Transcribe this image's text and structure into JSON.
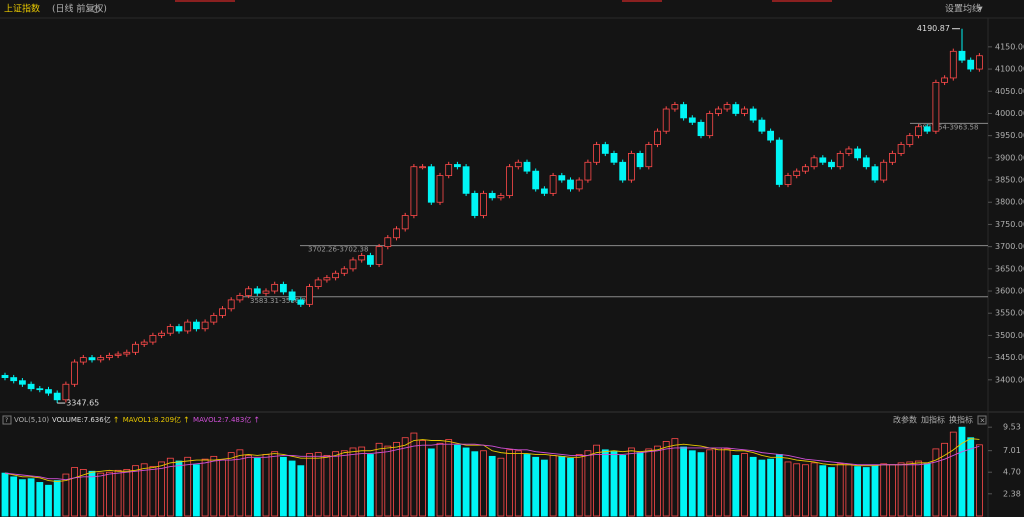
{
  "header": {
    "title": "上证指数",
    "subtitle": "(日线 前复权)",
    "ma_setting": "设置均线"
  },
  "chart_data": [
    {
      "type": "candlestick",
      "up_color": "#ff4a4a",
      "down_color": "#00f5f5",
      "ylim": [
        3332,
        4215
      ],
      "yticks": [
        {
          "value": 3400,
          "label": "3400.00"
        },
        {
          "value": 3450,
          "label": "3450.00"
        },
        {
          "value": 3500,
          "label": "3500.00"
        },
        {
          "value": 3550,
          "label": "3550.00"
        },
        {
          "value": 3600,
          "label": "3600.00"
        },
        {
          "value": 3650,
          "label": "3650.00"
        },
        {
          "value": 3700,
          "label": "3700.00"
        },
        {
          "value": 3750,
          "label": "3750.00"
        },
        {
          "value": 3800,
          "label": "3800.00"
        },
        {
          "value": 3850,
          "label": "3850.00"
        },
        {
          "value": 3900,
          "label": "3900.00"
        },
        {
          "value": 3950,
          "label": "3950.00"
        },
        {
          "value": 4000,
          "label": "4000.00"
        },
        {
          "value": 4050,
          "label": "4050.00"
        },
        {
          "value": 4100,
          "label": "4100.00"
        },
        {
          "value": 4150,
          "label": "4150.00"
        }
      ],
      "annotations": [
        {
          "value": 3702.26,
          "label": "3702.26-3702.38"
        },
        {
          "value": 3586.97,
          "label": "3583.31-3586.97"
        },
        {
          "value": 3977.54,
          "label": "3977.54-3963.58"
        }
      ],
      "open": [
        3410,
        3405,
        3398,
        3390,
        3380,
        3378,
        3370,
        3355,
        3390,
        3440,
        3450,
        3445,
        3450,
        3455,
        3458,
        3462,
        3480,
        3485,
        3500,
        3505,
        3520,
        3510,
        3530,
        3515,
        3530,
        3545,
        3560,
        3580,
        3590,
        3605,
        3595,
        3600,
        3615,
        3598,
        3580,
        3570,
        3610,
        3625,
        3630,
        3640,
        3650,
        3670,
        3680,
        3660,
        3700,
        3720,
        3740,
        3770,
        3880,
        3880,
        3800,
        3860,
        3885,
        3880,
        3820,
        3770,
        3820,
        3810,
        3815,
        3880,
        3890,
        3870,
        3830,
        3820,
        3860,
        3850,
        3830,
        3850,
        3890,
        3930,
        3910,
        3890,
        3850,
        3910,
        3880,
        3930,
        3960,
        4010,
        4020,
        3990,
        3980,
        3950,
        4000,
        4010,
        4020,
        4000,
        4010,
        3985,
        3960,
        3940,
        3840,
        3860,
        3870,
        3880,
        3900,
        3890,
        3880,
        3910,
        3920,
        3900,
        3880,
        3850,
        3890,
        3910,
        3930,
        3950,
        3970,
        3960,
        4070,
        4080,
        4140,
        4120,
        4100
      ],
      "high": [
        3416,
        3411,
        3404,
        3396,
        3386,
        3384,
        3376,
        3396,
        3446,
        3456,
        3456,
        3456,
        3461,
        3464,
        3468,
        3486,
        3491,
        3506,
        3511,
        3526,
        3526,
        3536,
        3536,
        3536,
        3551,
        3566,
        3586,
        3596,
        3611,
        3611,
        3606,
        3621,
        3621,
        3604,
        3586,
        3616,
        3631,
        3636,
        3646,
        3656,
        3676,
        3686,
        3686,
        3706,
        3726,
        3746,
        3776,
        3886,
        3886,
        3886,
        3866,
        3891,
        3891,
        3886,
        3826,
        3826,
        3826,
        3821,
        3886,
        3896,
        3896,
        3876,
        3836,
        3866,
        3866,
        3856,
        3856,
        3896,
        3936,
        3936,
        3916,
        3896,
        3916,
        3916,
        3936,
        3966,
        4016,
        4026,
        4026,
        3996,
        3986,
        4006,
        4016,
        4026,
        4026,
        4016,
        4016,
        3991,
        3966,
        3946,
        3866,
        3876,
        3886,
        3906,
        3906,
        3896,
        3916,
        3926,
        3926,
        3906,
        3886,
        3896,
        3916,
        3936,
        3956,
        3976,
        3976,
        4076,
        4086,
        4146,
        4190.87,
        4126,
        4136
      ],
      "low": [
        3399,
        3392,
        3384,
        3374,
        3372,
        3364,
        3347.65,
        3349,
        3384,
        3434,
        3439,
        3439,
        3444,
        3449,
        3452,
        3456,
        3474,
        3479,
        3494,
        3499,
        3504,
        3504,
        3509,
        3509,
        3524,
        3539,
        3554,
        3574,
        3584,
        3589,
        3589,
        3594,
        3592,
        3574,
        3564,
        3564,
        3604,
        3619,
        3624,
        3634,
        3644,
        3664,
        3654,
        3654,
        3694,
        3714,
        3734,
        3764,
        3874,
        3794,
        3794,
        3854,
        3874,
        3814,
        3764,
        3764,
        3804,
        3804,
        3809,
        3874,
        3864,
        3824,
        3814,
        3814,
        3844,
        3824,
        3824,
        3844,
        3884,
        3904,
        3884,
        3844,
        3844,
        3874,
        3874,
        3924,
        3954,
        4004,
        3984,
        3974,
        3944,
        3944,
        3994,
        4004,
        3994,
        3994,
        3979,
        3954,
        3934,
        3834,
        3834,
        3854,
        3864,
        3874,
        3884,
        3874,
        3874,
        3904,
        3894,
        3874,
        3844,
        3844,
        3884,
        3904,
        3924,
        3944,
        3954,
        3954,
        4064,
        4074,
        4114,
        4094,
        4094
      ],
      "close": [
        3405,
        3398,
        3390,
        3380,
        3378,
        3370,
        3355,
        3390,
        3440,
        3450,
        3445,
        3450,
        3455,
        3458,
        3462,
        3480,
        3485,
        3500,
        3505,
        3520,
        3510,
        3530,
        3515,
        3530,
        3545,
        3560,
        3580,
        3590,
        3605,
        3595,
        3600,
        3615,
        3598,
        3580,
        3570,
        3610,
        3625,
        3630,
        3640,
        3650,
        3670,
        3680,
        3660,
        3700,
        3720,
        3740,
        3770,
        3880,
        3880,
        3800,
        3860,
        3885,
        3880,
        3820,
        3770,
        3820,
        3810,
        3815,
        3880,
        3890,
        3870,
        3830,
        3820,
        3860,
        3850,
        3830,
        3850,
        3890,
        3930,
        3910,
        3890,
        3850,
        3910,
        3880,
        3930,
        3960,
        4010,
        4020,
        3990,
        3980,
        3950,
        4000,
        4010,
        4020,
        4000,
        4010,
        3985,
        3960,
        3940,
        3840,
        3860,
        3870,
        3880,
        3900,
        3890,
        3880,
        3910,
        3920,
        3900,
        3880,
        3850,
        3890,
        3910,
        3930,
        3950,
        3970,
        3960,
        4070,
        4080,
        4140,
        4120,
        4100,
        4130
      ]
    },
    {
      "type": "bar",
      "title": "VOL(5,10)",
      "buttons": [
        "改参数",
        "加指标",
        "换指标"
      ],
      "ylim": [
        0,
        10.3
      ],
      "yticks": [
        2.38,
        {
          "value": 4.7,
          "label": "4.70"
        },
        7.01,
        9.53
      ],
      "series": [
        {
          "name": "VOLUME:7.636亿",
          "color": "#ffffff",
          "values": [
            4.6,
            4.2,
            3.9,
            4.0,
            3.6,
            3.3,
            3.8,
            4.5,
            5.2,
            5.0,
            4.8,
            4.6,
            4.7,
            4.9,
            5.0,
            5.4,
            5.6,
            5.3,
            5.8,
            6.2,
            5.9,
            6.3,
            5.5,
            6.1,
            6.4,
            6.0,
            6.8,
            7.1,
            6.5,
            6.2,
            6.6,
            6.9,
            6.3,
            5.9,
            5.4,
            6.7,
            6.8,
            6.5,
            6.9,
            7.0,
            7.3,
            7.4,
            6.6,
            7.8,
            7.5,
            7.9,
            8.4,
            8.9,
            8.1,
            7.2,
            7.8,
            8.2,
            7.6,
            7.3,
            6.9,
            7.0,
            6.4,
            6.2,
            7.1,
            7.0,
            6.6,
            6.3,
            6.0,
            6.5,
            6.4,
            6.2,
            6.6,
            7.0,
            7.6,
            7.1,
            6.9,
            6.5,
            7.3,
            6.8,
            7.2,
            7.5,
            8.0,
            8.3,
            7.4,
            7.0,
            6.8,
            7.1,
            7.3,
            7.2,
            6.5,
            6.7,
            6.3,
            6.0,
            6.1,
            6.6,
            5.8,
            5.6,
            5.5,
            5.7,
            5.4,
            5.2,
            5.6,
            5.5,
            5.3,
            5.2,
            5.4,
            5.6,
            5.5,
            5.7,
            5.8,
            5.9,
            5.6,
            7.2,
            7.8,
            9.0,
            9.53,
            8.4,
            7.636
          ]
        },
        {
          "name": "MAVOL1:8.209亿",
          "color": "#e8c800",
          "values": [
            4.6,
            4.4,
            4.2,
            4.2,
            4.1,
            3.8,
            3.7,
            3.8,
            4.1,
            4.4,
            4.7,
            4.8,
            4.9,
            4.8,
            4.8,
            4.9,
            5.1,
            5.2,
            5.4,
            5.7,
            5.8,
            5.9,
            6.0,
            6.0,
            6.0,
            6.1,
            6.2,
            6.5,
            6.6,
            6.5,
            6.6,
            6.7,
            6.6,
            6.4,
            6.2,
            6.2,
            6.2,
            6.3,
            6.5,
            6.8,
            6.9,
            7.0,
            7.0,
            7.2,
            7.3,
            7.4,
            7.6,
            8.1,
            8.2,
            8.1,
            8.1,
            8.0,
            7.8,
            7.6,
            7.6,
            7.6,
            7.0,
            6.8,
            6.7,
            6.7,
            6.7,
            6.6,
            6.6,
            6.5,
            6.4,
            6.3,
            6.3,
            6.5,
            6.8,
            6.9,
            7.0,
            6.9,
            7.0,
            6.9,
            7.0,
            7.1,
            7.4,
            7.6,
            7.7,
            7.6,
            7.5,
            7.3,
            7.1,
            7.1,
            7.0,
            7.0,
            6.8,
            6.5,
            6.3,
            6.3,
            6.2,
            6.0,
            5.9,
            5.8,
            5.6,
            5.5,
            5.5,
            5.5,
            5.4,
            5.4,
            5.4,
            5.5,
            5.5,
            5.5,
            5.6,
            5.7,
            5.7,
            6.0,
            6.5,
            7.1,
            7.8,
            8.3,
            8.209
          ]
        },
        {
          "name": "MAVOL2:7.483亿",
          "color": "#d050d8",
          "values": [
            4.6,
            4.5,
            4.4,
            4.3,
            4.2,
            4.0,
            4.0,
            3.9,
            4.1,
            4.2,
            4.2,
            4.3,
            4.5,
            4.6,
            4.7,
            4.8,
            4.9,
            5.0,
            5.1,
            5.3,
            5.4,
            5.5,
            5.6,
            5.7,
            5.9,
            6.0,
            6.0,
            6.1,
            6.3,
            6.3,
            6.3,
            6.4,
            6.5,
            6.5,
            6.4,
            6.4,
            6.4,
            6.4,
            6.4,
            6.5,
            6.6,
            6.7,
            6.7,
            6.8,
            6.9,
            7.1,
            7.3,
            7.5,
            7.6,
            7.6,
            7.7,
            7.7,
            7.7,
            7.7,
            7.7,
            7.6,
            7.5,
            7.3,
            7.2,
            7.1,
            7.1,
            6.9,
            6.8,
            6.7,
            6.6,
            6.5,
            6.5,
            6.5,
            6.6,
            6.6,
            6.6,
            6.6,
            6.7,
            6.8,
            6.9,
            7.0,
            7.2,
            7.3,
            7.3,
            7.3,
            7.3,
            7.3,
            7.3,
            7.3,
            7.2,
            7.1,
            7.0,
            6.8,
            6.7,
            6.6,
            6.5,
            6.3,
            6.1,
            6.0,
            5.9,
            5.8,
            5.7,
            5.6,
            5.5,
            5.5,
            5.5,
            5.5,
            5.5,
            5.5,
            5.5,
            5.5,
            5.6,
            5.8,
            6.1,
            6.5,
            6.9,
            7.2,
            7.483
          ]
        }
      ]
    }
  ]
}
